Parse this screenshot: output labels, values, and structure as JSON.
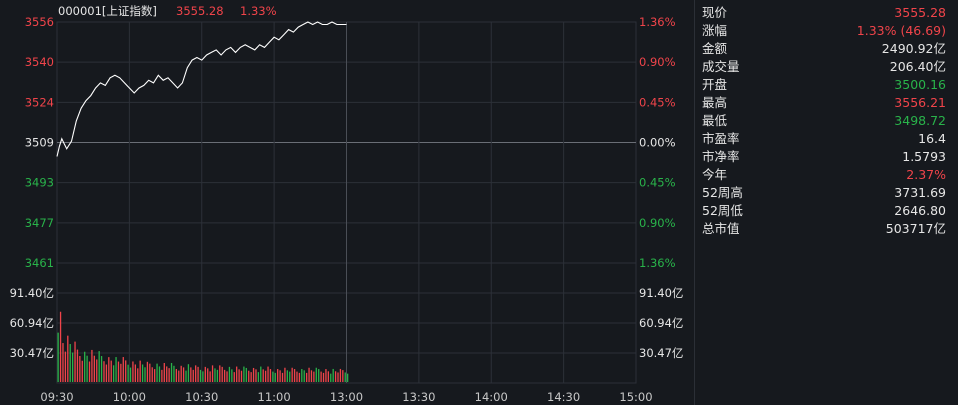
{
  "header": {
    "code_name": "000001[上证指数]",
    "price": "3555.28",
    "change_pct": "1.33%"
  },
  "chart_data": {
    "type": "line",
    "x": [
      "09:30",
      "09:31",
      "09:32",
      "09:33",
      "09:34",
      "09:36",
      "09:38",
      "09:40",
      "09:42",
      "09:44",
      "09:46",
      "09:48",
      "09:50",
      "09:52",
      "09:54",
      "09:56",
      "09:58",
      "10:00",
      "10:02",
      "10:04",
      "10:06",
      "10:08",
      "10:10",
      "10:12",
      "10:14",
      "10:16",
      "10:18",
      "10:20",
      "10:22",
      "10:24",
      "10:26",
      "10:28",
      "10:30",
      "10:32",
      "10:34",
      "10:36",
      "10:38",
      "10:40",
      "10:42",
      "10:44",
      "10:46",
      "10:48",
      "10:50",
      "10:52",
      "10:54",
      "10:56",
      "10:58",
      "11:00",
      "11:02",
      "11:04",
      "11:06",
      "11:08",
      "11:10",
      "11:12",
      "11:14",
      "11:16",
      "11:18",
      "11:20",
      "11:22",
      "11:24",
      "11:26",
      "11:28",
      "11:30"
    ],
    "price": [
      3503,
      3507,
      3510,
      3508,
      3506,
      3509,
      3517,
      3522,
      3525,
      3527,
      3530,
      3532,
      3531,
      3534,
      3535,
      3534,
      3532,
      3530,
      3528,
      3530,
      3531,
      3533,
      3532,
      3535,
      3533,
      3534,
      3532,
      3530,
      3532,
      3538,
      3541,
      3542,
      3541,
      3543,
      3544,
      3545,
      3543,
      3545,
      3546,
      3544,
      3546,
      3547,
      3546,
      3545,
      3547,
      3546,
      3548,
      3550,
      3549,
      3551,
      3553,
      3552,
      3554,
      3555,
      3556,
      3555,
      3556,
      3555,
      3555,
      3556,
      3555,
      3555,
      3555
    ],
    "volume_buckets": [
      65,
      40,
      39,
      34,
      30,
      28,
      27,
      27,
      26,
      24,
      23,
      22,
      21,
      21,
      20,
      19,
      18,
      18,
      17,
      17,
      17,
      16,
      16,
      16,
      15,
      15,
      15,
      15,
      14,
      14,
      14,
      14,
      14,
      14,
      14,
      14,
      13,
      13,
      13,
      13,
      13,
      13,
      13,
      13,
      12,
      12,
      12,
      12,
      12,
      12,
      12,
      12,
      12,
      12,
      12,
      12,
      11,
      11,
      11,
      11,
      11,
      11,
      10
    ],
    "price_axis": [
      "3556",
      "3540",
      "3524",
      "3509",
      "3493",
      "3477",
      "3461"
    ],
    "pct_axis": [
      "1.36%",
      "0.90%",
      "0.45%",
      "0.00%",
      "0.45%",
      "0.90%",
      "1.36%"
    ],
    "volume_axis": [
      "91.40亿",
      "60.94亿",
      "30.47亿"
    ],
    "time_axis": [
      "09:30",
      "10:00",
      "10:30",
      "11:00",
      "13:00",
      "13:30",
      "14:00",
      "14:30",
      "15:00"
    ],
    "ylim": [
      3461,
      3556
    ],
    "prev_close": 3509,
    "volume_max": 91.4
  },
  "stats": [
    {
      "label": "现价",
      "value": "3555.28",
      "color": "#f0444a"
    },
    {
      "label": "涨幅",
      "value": "1.33% (46.69)",
      "color": "#f0444a"
    },
    {
      "label": "金额",
      "value": "2490.92亿",
      "color": "#e6e6e6"
    },
    {
      "label": "成交量",
      "value": "206.40亿",
      "color": "#e6e6e6"
    },
    {
      "label": "开盘",
      "value": "3500.16",
      "color": "#29b34a"
    },
    {
      "label": "最高",
      "value": "3556.21",
      "color": "#f0444a"
    },
    {
      "label": "最低",
      "value": "3498.72",
      "color": "#29b34a"
    },
    {
      "label": "市盈率",
      "value": "16.4",
      "color": "#e6e6e6"
    },
    {
      "label": "市净率",
      "value": "1.5793",
      "color": "#e6e6e6"
    },
    {
      "label": "今年",
      "value": "2.37%",
      "color": "#f0444a"
    },
    {
      "label": "52周高",
      "value": "3731.69",
      "color": "#e6e6e6"
    },
    {
      "label": "52周低",
      "value": "2646.80",
      "color": "#e6e6e6"
    },
    {
      "label": "总市值",
      "value": "503717亿",
      "color": "#e6e6e6"
    }
  ],
  "colors": {
    "up": "#f0444a",
    "down": "#29b34a",
    "flat": "#e6e6e6",
    "grid": "#2c3038",
    "line": "#ffffff"
  }
}
